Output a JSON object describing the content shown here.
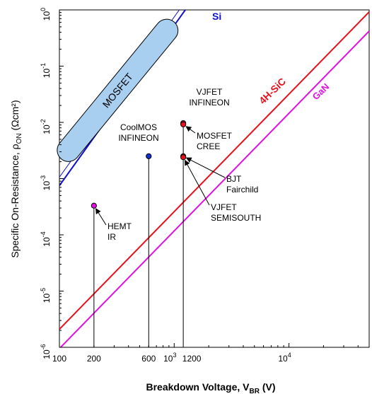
{
  "chart_data": {
    "type": "scatter",
    "xscale": "log",
    "yscale": "log",
    "xlim": [
      100,
      50000
    ],
    "ylim": [
      1e-06,
      1
    ],
    "xlabel": {
      "main": "Breakdown Voltage, V",
      "sub": "BR",
      "unit": " (V)"
    },
    "ylabel": {
      "main": "Specific On-Resistance, ρ",
      "sub": "ON",
      "unit": " (Ωcm²)"
    },
    "x_tick_labels": [
      {
        "value": 100,
        "text": "100"
      },
      {
        "value": 200,
        "text": "200"
      },
      {
        "value": 600,
        "text": "600"
      },
      {
        "value": 1000,
        "base": "10",
        "exp": "3"
      },
      {
        "value": 1200,
        "text": "1200"
      },
      {
        "value": 10000,
        "base": "10",
        "exp": "4"
      }
    ],
    "y_tick_labels": [
      {
        "value": 1,
        "base": "10",
        "exp": "0"
      },
      {
        "value": 0.1,
        "base": "10",
        "exp": "-1"
      },
      {
        "value": 0.01,
        "base": "10",
        "exp": "-2"
      },
      {
        "value": 0.001,
        "base": "10",
        "exp": "-3"
      },
      {
        "value": 0.0001,
        "base": "10",
        "exp": "-4"
      },
      {
        "value": 1e-05,
        "base": "10",
        "exp": "-5"
      },
      {
        "value": 1e-06,
        "base": "10",
        "exp": "-6"
      }
    ],
    "limit_lines": [
      {
        "name": "Si",
        "color": "#1010d0",
        "x": [
          100,
          1250
        ],
        "y": [
          0.00075,
          1
        ],
        "parallel_offset_decades": 0.15
      },
      {
        "name": "4H-SiC",
        "color": "#e8101a",
        "x": [
          100,
          50000
        ],
        "y": [
          2.1e-06,
          0.92
        ]
      },
      {
        "name": "GaN",
        "color": "#e010e0",
        "x": [
          100,
          50000
        ],
        "y": [
          9.5e-07,
          0.42
        ]
      }
    ],
    "region": {
      "label": "MOSFET",
      "color": "#a8cff0",
      "x": [
        120,
        860
      ],
      "y": [
        0.0032,
        0.43
      ]
    },
    "points": [
      {
        "label_lines": [
          "HEMT",
          "IR"
        ],
        "x": 200,
        "y": 0.00033,
        "color": "#e010e0"
      },
      {
        "label_lines": [
          "CoolMOS",
          "INFINEON"
        ],
        "x": 600,
        "y": 0.0025,
        "color": "#1030d0"
      },
      {
        "label_lines": [
          "VJFET",
          "INFINEON"
        ],
        "x": 1200,
        "y": 0.0097,
        "color": "#e8101a"
      },
      {
        "label_lines": [
          "MOSFET",
          "CREE"
        ],
        "x": 1200,
        "y": 0.0092,
        "color": "#e8101a"
      },
      {
        "label_lines": [
          "BJT",
          "Fairchild"
        ],
        "x": 1200,
        "y": 0.0025,
        "color": "#e8101a"
      },
      {
        "label_lines": [
          "VJFET",
          "SEMISOUTH"
        ],
        "x": 1200,
        "y": 0.0024,
        "color": "#e8101a"
      }
    ]
  }
}
